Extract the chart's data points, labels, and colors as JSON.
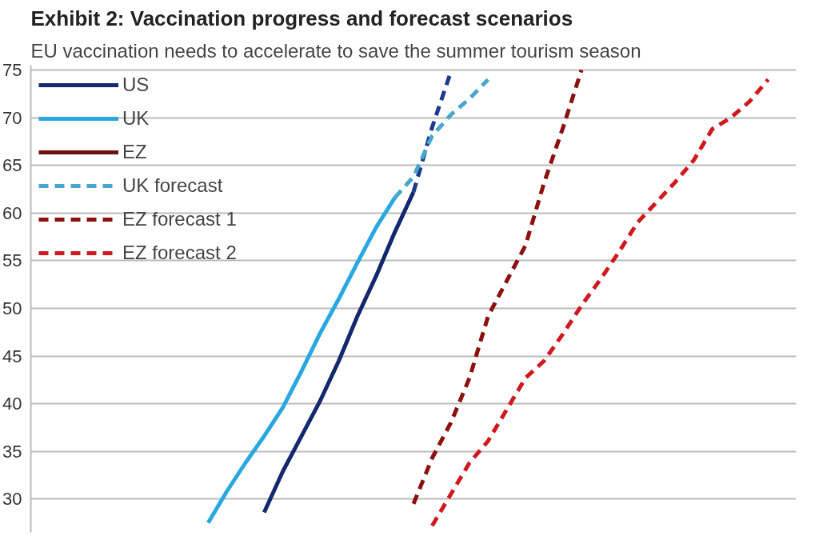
{
  "chart_data": {
    "type": "line",
    "title": "Exhibit 2: Vaccination progress and forecast scenarios",
    "subtitle": "EU vaccination needs to accelerate to save the summer tourism season",
    "categories": [
      null,
      null,
      null,
      null,
      null,
      null,
      null,
      null,
      null,
      null,
      null,
      null,
      null,
      null,
      null,
      null,
      null,
      null,
      null,
      null,
      null,
      null,
      null,
      null,
      null,
      null,
      null,
      null,
      null,
      null,
      null,
      null,
      null,
      null,
      null,
      null,
      null,
      null,
      null,
      null,
      null
    ],
    "series": [
      {
        "name": "US",
        "color": "#14286e",
        "line_style": "solid",
        "values": [
          null,
          null,
          null,
          null,
          null,
          null,
          null,
          null,
          null,
          null,
          null,
          null,
          28.6,
          32.9,
          36.6,
          40.3,
          44.5,
          49.2,
          53.4,
          58.0,
          62.2,
          null,
          null,
          null,
          null,
          null,
          null,
          null,
          null,
          null,
          null,
          null,
          null,
          null,
          null,
          null,
          null,
          null,
          null,
          null,
          null
        ]
      },
      {
        "name": "UK",
        "color": "#29a8e0",
        "line_style": "solid",
        "values": [
          null,
          null,
          null,
          null,
          null,
          null,
          null,
          null,
          null,
          27.5,
          30.8,
          33.8,
          36.6,
          39.6,
          43.4,
          47.4,
          51.0,
          54.8,
          58.5,
          61.6,
          null,
          null,
          null,
          null,
          null,
          null,
          null,
          null,
          null,
          null,
          null,
          null,
          null,
          null,
          null,
          null,
          null,
          null,
          null,
          null,
          null
        ]
      },
      {
        "name": "EZ",
        "color": "#6b0f0f",
        "line_style": "solid",
        "values": [
          null,
          null,
          null,
          null,
          null,
          null,
          null,
          null,
          null,
          null,
          null,
          null,
          null,
          null,
          null,
          null,
          null,
          null,
          null,
          null,
          null,
          null,
          null,
          null,
          null,
          null,
          null,
          null,
          null,
          null,
          null,
          null,
          null,
          null,
          null,
          null,
          null,
          null,
          null,
          null,
          null
        ]
      },
      {
        "color": "#1f3a8a",
        "line_style": "dashed",
        "values": [
          null,
          null,
          null,
          null,
          null,
          null,
          null,
          null,
          null,
          null,
          null,
          null,
          null,
          null,
          null,
          null,
          null,
          null,
          null,
          null,
          62.2,
          69.0,
          74.8,
          null,
          null,
          null,
          null,
          null,
          null,
          null,
          null,
          null,
          null,
          null,
          null,
          null,
          null,
          null,
          null,
          null,
          null
        ]
      },
      {
        "name": "UK forecast",
        "color": "#4aa6cc",
        "line_style": "dashed",
        "values": [
          null,
          null,
          null,
          null,
          null,
          null,
          null,
          null,
          null,
          null,
          null,
          null,
          null,
          null,
          null,
          null,
          null,
          null,
          null,
          61.6,
          63.8,
          68.1,
          70.3,
          72.0,
          74.0,
          null,
          null,
          null,
          null,
          null,
          null,
          null,
          null,
          null,
          null,
          null,
          null,
          null,
          null,
          null,
          null
        ]
      },
      {
        "name": "EZ forecast 1",
        "color": "#8b1010",
        "line_style": "dashed",
        "values": [
          null,
          null,
          null,
          null,
          null,
          null,
          null,
          null,
          null,
          null,
          null,
          null,
          null,
          null,
          null,
          null,
          null,
          null,
          null,
          null,
          29.5,
          34.3,
          38.0,
          42.7,
          49.2,
          52.9,
          56.6,
          63.2,
          68.9,
          75.0,
          null,
          null,
          null,
          null,
          null,
          null,
          null,
          null,
          null,
          null,
          null
        ]
      },
      {
        "name": "EZ forecast 2",
        "color": "#d0191e",
        "line_style": "dashed",
        "values": [
          null,
          null,
          null,
          null,
          null,
          null,
          null,
          null,
          null,
          null,
          null,
          null,
          null,
          null,
          null,
          null,
          null,
          null,
          null,
          null,
          null,
          27.2,
          30.5,
          33.8,
          36.1,
          39.4,
          42.7,
          44.5,
          47.3,
          50.3,
          53.0,
          55.9,
          59.0,
          61.1,
          63.2,
          65.5,
          68.8,
          70.0,
          71.7,
          74.0,
          null
        ]
      }
    ],
    "ylim": [
      26.5,
      75.5
    ],
    "yticks": [
      30,
      35,
      40,
      45,
      50,
      55,
      60,
      65,
      70,
      75
    ],
    "grid": "y",
    "legend": "top left",
    "tick_labels": "y"
  }
}
